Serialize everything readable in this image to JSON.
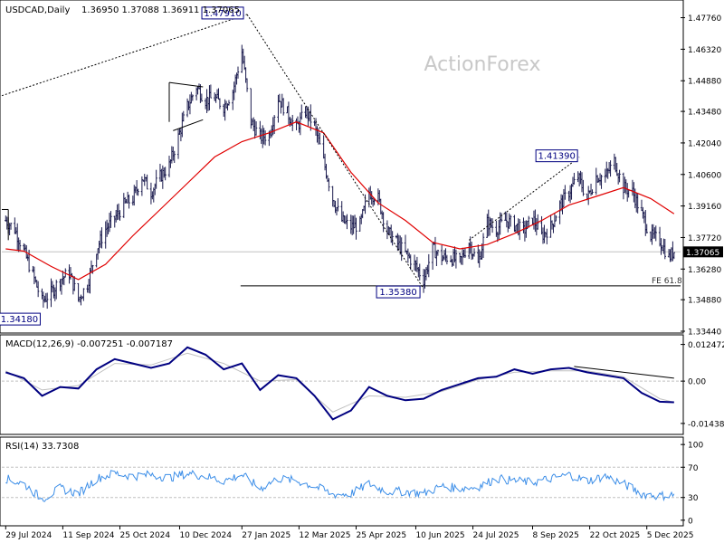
{
  "chart_data": [
    {
      "type": "candlestick",
      "header": {
        "symbol_label": "USDCAD,Daily",
        "ohlc": "1.36950 1.37088 1.36911 1.37065"
      },
      "watermark": "ActionForex",
      "ylim": [
        1.3344,
        1.4832
      ],
      "y_ticks": [
        "1.47760",
        "1.46320",
        "1.44880",
        "1.43480",
        "1.42040",
        "1.40600",
        "1.39160",
        "1.37720",
        "1.36280",
        "1.34880",
        "1.33440"
      ],
      "current_price": "1.37065",
      "annotations": [
        {
          "label": "1.47910",
          "value": 1.4791,
          "date": "2025-01-31"
        },
        {
          "label": "1.34180",
          "value": 1.3418,
          "date": "2024-08-26"
        },
        {
          "label": "1.35380",
          "value": 1.3538,
          "date": "2025-06-16"
        },
        {
          "label": "1.41390",
          "value": 1.4139,
          "date": "2025-10-14"
        }
      ],
      "fe_label": "FE 61.8",
      "fe_level": 1.3551,
      "moving_average_color": "#e00000",
      "candle_color": "#1a1a4d",
      "price_points": [
        [
          "2024-07-29",
          1.385
        ],
        [
          "2024-08-05",
          1.381
        ],
        [
          "2024-08-12",
          1.371
        ],
        [
          "2024-08-19",
          1.36
        ],
        [
          "2024-08-26",
          1.348
        ],
        [
          "2024-09-02",
          1.352
        ],
        [
          "2024-09-09",
          1.358
        ],
        [
          "2024-09-16",
          1.361
        ],
        [
          "2024-09-23",
          1.349
        ],
        [
          "2024-09-30",
          1.356
        ],
        [
          "2024-10-07",
          1.372
        ],
        [
          "2024-10-14",
          1.381
        ],
        [
          "2024-10-21",
          1.386
        ],
        [
          "2024-10-28",
          1.392
        ],
        [
          "2024-11-04",
          1.395
        ],
        [
          "2024-11-11",
          1.405
        ],
        [
          "2024-11-18",
          1.398
        ],
        [
          "2024-11-25",
          1.405
        ],
        [
          "2024-12-02",
          1.41
        ],
        [
          "2024-12-09",
          1.423
        ],
        [
          "2024-12-16",
          1.437
        ],
        [
          "2024-12-23",
          1.446
        ],
        [
          "2024-12-30",
          1.44
        ],
        [
          "2025-01-06",
          1.441
        ],
        [
          "2025-01-13",
          1.437
        ],
        [
          "2025-01-20",
          1.444
        ],
        [
          "2025-01-27",
          1.462
        ],
        [
          "2025-02-03",
          1.43
        ],
        [
          "2025-02-10",
          1.423
        ],
        [
          "2025-02-17",
          1.424
        ],
        [
          "2025-02-24",
          1.441
        ],
        [
          "2025-03-03",
          1.434
        ],
        [
          "2025-03-10",
          1.427
        ],
        [
          "2025-03-17",
          1.435
        ],
        [
          "2025-03-24",
          1.428
        ],
        [
          "2025-03-31",
          1.412
        ],
        [
          "2025-04-07",
          1.395
        ],
        [
          "2025-04-14",
          1.385
        ],
        [
          "2025-04-21",
          1.382
        ],
        [
          "2025-04-28",
          1.383
        ],
        [
          "2025-05-05",
          1.398
        ],
        [
          "2025-05-12",
          1.395
        ],
        [
          "2025-05-19",
          1.38
        ],
        [
          "2025-05-26",
          1.375
        ],
        [
          "2025-06-02",
          1.37
        ],
        [
          "2025-06-09",
          1.365
        ],
        [
          "2025-06-16",
          1.358
        ],
        [
          "2025-06-23",
          1.372
        ],
        [
          "2025-06-30",
          1.368
        ],
        [
          "2025-07-07",
          1.368
        ],
        [
          "2025-07-14",
          1.366
        ],
        [
          "2025-07-21",
          1.375
        ],
        [
          "2025-07-28",
          1.365
        ],
        [
          "2025-08-04",
          1.384
        ],
        [
          "2025-08-11",
          1.381
        ],
        [
          "2025-08-18",
          1.385
        ],
        [
          "2025-08-25",
          1.383
        ],
        [
          "2025-09-01",
          1.38
        ],
        [
          "2025-09-08",
          1.386
        ],
        [
          "2025-09-15",
          1.378
        ],
        [
          "2025-09-22",
          1.382
        ],
        [
          "2025-09-29",
          1.392
        ],
        [
          "2025-10-06",
          1.398
        ],
        [
          "2025-10-13",
          1.405
        ],
        [
          "2025-10-20",
          1.395
        ],
        [
          "2025-10-27",
          1.405
        ],
        [
          "2025-11-03",
          1.405
        ],
        [
          "2025-11-10",
          1.412
        ],
        [
          "2025-11-17",
          1.4
        ],
        [
          "2025-11-24",
          1.398
        ],
        [
          "2025-12-01",
          1.388
        ],
        [
          "2025-12-08",
          1.378
        ],
        [
          "2025-12-15",
          1.376
        ],
        [
          "2025-12-22",
          1.368
        ],
        [
          "2025-12-26",
          1.371
        ]
      ],
      "ma_points": [
        [
          "2024-07-29",
          1.372
        ],
        [
          "2024-08-12",
          1.371
        ],
        [
          "2024-09-02",
          1.364
        ],
        [
          "2024-09-23",
          1.358
        ],
        [
          "2024-10-14",
          1.365
        ],
        [
          "2024-11-04",
          1.378
        ],
        [
          "2024-11-25",
          1.39
        ],
        [
          "2024-12-16",
          1.402
        ],
        [
          "2025-01-06",
          1.414
        ],
        [
          "2025-01-27",
          1.421
        ],
        [
          "2025-02-17",
          1.425
        ],
        [
          "2025-03-10",
          1.43
        ],
        [
          "2025-03-31",
          1.425
        ],
        [
          "2025-04-21",
          1.407
        ],
        [
          "2025-05-12",
          1.393
        ],
        [
          "2025-06-02",
          1.385
        ],
        [
          "2025-06-23",
          1.375
        ],
        [
          "2025-07-14",
          1.372
        ],
        [
          "2025-08-04",
          1.374
        ],
        [
          "2025-08-25",
          1.379
        ],
        [
          "2025-09-15",
          1.385
        ],
        [
          "2025-10-06",
          1.392
        ],
        [
          "2025-10-27",
          1.396
        ],
        [
          "2025-11-17",
          1.4
        ],
        [
          "2025-12-08",
          1.395
        ],
        [
          "2025-12-26",
          1.388
        ]
      ]
    },
    {
      "type": "line",
      "name": "MACD",
      "label": "MACD(12,26,9) -0.007251 -0.007187",
      "y_ticks": [
        "0.012472",
        "0.00",
        "-0.014389"
      ],
      "ylim": [
        -0.0175,
        0.0145
      ],
      "macd_color": "#000080",
      "signal_color": "#c0c0c0",
      "macd_points": [
        [
          "2024-07-29",
          0.003
        ],
        [
          "2024-08-12",
          0.001
        ],
        [
          "2024-08-26",
          -0.005
        ],
        [
          "2024-09-09",
          -0.002
        ],
        [
          "2024-09-23",
          -0.0025
        ],
        [
          "2024-10-07",
          0.004
        ],
        [
          "2024-10-21",
          0.0075
        ],
        [
          "2024-11-04",
          0.006
        ],
        [
          "2024-11-18",
          0.0045
        ],
        [
          "2024-12-02",
          0.006
        ],
        [
          "2024-12-16",
          0.0115
        ],
        [
          "2024-12-30",
          0.009
        ],
        [
          "2025-01-13",
          0.004
        ],
        [
          "2025-01-27",
          0.006
        ],
        [
          "2025-02-10",
          -0.003
        ],
        [
          "2025-02-24",
          0.002
        ],
        [
          "2025-03-10",
          0.001
        ],
        [
          "2025-03-24",
          -0.005
        ],
        [
          "2025-04-07",
          -0.013
        ],
        [
          "2025-04-21",
          -0.01
        ],
        [
          "2025-05-05",
          -0.002
        ],
        [
          "2025-05-19",
          -0.005
        ],
        [
          "2025-06-02",
          -0.0065
        ],
        [
          "2025-06-16",
          -0.006
        ],
        [
          "2025-06-30",
          -0.003
        ],
        [
          "2025-07-14",
          -0.001
        ],
        [
          "2025-07-28",
          0.001
        ],
        [
          "2025-08-11",
          0.0015
        ],
        [
          "2025-08-25",
          0.004
        ],
        [
          "2025-09-08",
          0.0025
        ],
        [
          "2025-09-22",
          0.004
        ],
        [
          "2025-10-06",
          0.0045
        ],
        [
          "2025-10-20",
          0.003
        ],
        [
          "2025-11-03",
          0.002
        ],
        [
          "2025-11-17",
          0.001
        ],
        [
          "2025-12-01",
          -0.004
        ],
        [
          "2025-12-15",
          -0.007
        ],
        [
          "2025-12-26",
          -0.0072
        ]
      ],
      "signal_points": [
        [
          "2024-07-29",
          0.0035
        ],
        [
          "2024-08-26",
          -0.003
        ],
        [
          "2024-09-23",
          -0.0015
        ],
        [
          "2024-10-21",
          0.006
        ],
        [
          "2024-11-18",
          0.0055
        ],
        [
          "2024-12-16",
          0.0095
        ],
        [
          "2025-01-13",
          0.006
        ],
        [
          "2025-02-10",
          0.0
        ],
        [
          "2025-03-10",
          0.0005
        ],
        [
          "2025-04-07",
          -0.0105
        ],
        [
          "2025-05-05",
          -0.005
        ],
        [
          "2025-06-02",
          -0.0055
        ],
        [
          "2025-06-30",
          -0.0035
        ],
        [
          "2025-07-28",
          0.0005
        ],
        [
          "2025-08-25",
          0.003
        ],
        [
          "2025-09-22",
          0.0035
        ],
        [
          "2025-10-20",
          0.0035
        ],
        [
          "2025-11-17",
          0.0015
        ],
        [
          "2025-12-15",
          -0.006
        ],
        [
          "2025-12-26",
          -0.0072
        ]
      ]
    },
    {
      "type": "line",
      "name": "RSI",
      "label": "RSI(14) 33.7308",
      "y_ticks": [
        "100",
        "70",
        "30",
        "0"
      ],
      "ylim": [
        -5,
        105
      ],
      "line_color": "#3c8ee8",
      "rsi_points": [
        [
          "2024-07-29",
          55
        ],
        [
          "2024-08-12",
          48
        ],
        [
          "2024-08-26",
          28
        ],
        [
          "2024-09-09",
          42
        ],
        [
          "2024-09-23",
          35
        ],
        [
          "2024-10-07",
          55
        ],
        [
          "2024-10-21",
          62
        ],
        [
          "2024-11-04",
          58
        ],
        [
          "2024-11-18",
          60
        ],
        [
          "2024-12-02",
          56
        ],
        [
          "2024-12-16",
          62
        ],
        [
          "2024-12-30",
          58
        ],
        [
          "2025-01-13",
          52
        ],
        [
          "2025-01-27",
          60
        ],
        [
          "2025-02-10",
          42
        ],
        [
          "2025-02-24",
          55
        ],
        [
          "2025-03-10",
          52
        ],
        [
          "2025-03-24",
          45
        ],
        [
          "2025-04-07",
          34
        ],
        [
          "2025-04-21",
          35
        ],
        [
          "2025-05-05",
          48
        ],
        [
          "2025-05-19",
          38
        ],
        [
          "2025-06-02",
          38
        ],
        [
          "2025-06-16",
          35
        ],
        [
          "2025-06-30",
          45
        ],
        [
          "2025-07-14",
          42
        ],
        [
          "2025-07-28",
          44
        ],
        [
          "2025-08-11",
          55
        ],
        [
          "2025-08-25",
          52
        ],
        [
          "2025-09-08",
          50
        ],
        [
          "2025-09-22",
          55
        ],
        [
          "2025-10-06",
          60
        ],
        [
          "2025-10-20",
          52
        ],
        [
          "2025-11-03",
          58
        ],
        [
          "2025-11-17",
          48
        ],
        [
          "2025-12-01",
          35
        ],
        [
          "2025-12-15",
          32
        ],
        [
          "2025-12-26",
          33.73
        ]
      ]
    }
  ],
  "x_axis": {
    "labels": [
      [
        "29 Jul 2024",
        "2024-07-29"
      ],
      [
        "11 Sep 2024",
        "2024-09-11"
      ],
      [
        "25 Oct 2024",
        "2024-10-25"
      ],
      [
        "10 Dec 2024",
        "2024-12-10"
      ],
      [
        "27 Jan 2025",
        "2025-01-27"
      ],
      [
        "12 Mar 2025",
        "2025-03-12"
      ],
      [
        "25 Apr 2025",
        "2025-04-25"
      ],
      [
        "10 Jun 2025",
        "2025-06-10"
      ],
      [
        "24 Jul 2025",
        "2025-07-24"
      ],
      [
        "8 Sep 2025",
        "2025-09-08"
      ],
      [
        "22 Oct 2025",
        "2025-10-22"
      ],
      [
        "5 Dec 2025",
        "2025-12-05"
      ]
    ],
    "xlim": [
      "2024-07-26",
      "2025-12-31"
    ]
  }
}
